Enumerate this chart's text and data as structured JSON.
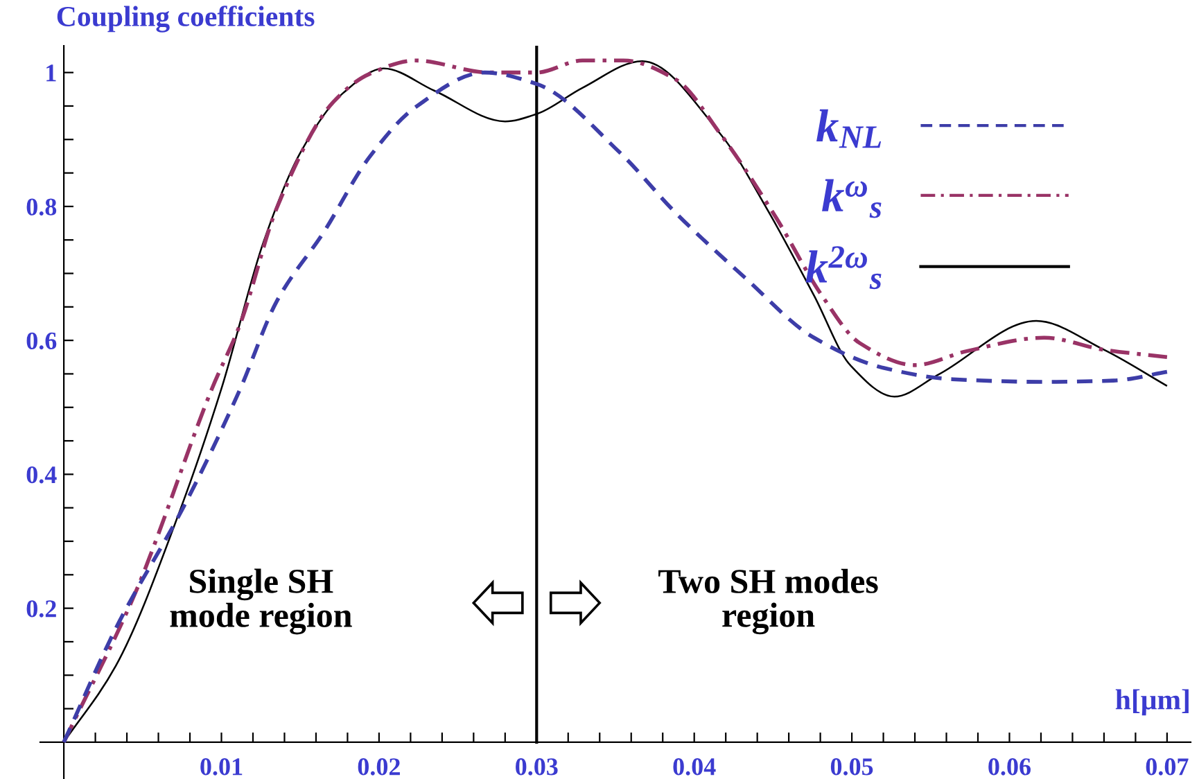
{
  "chart_data": {
    "type": "line",
    "ylabel": "Coupling coefficients",
    "xlabel": "h[μm]",
    "xlim": [
      -0.0015,
      0.0715
    ],
    "ylim": [
      -0.055,
      1.04
    ],
    "xticks": [
      {
        "value": 0.002,
        "label": null
      },
      {
        "value": 0.004,
        "label": null
      },
      {
        "value": 0.006,
        "label": null
      },
      {
        "value": 0.008,
        "label": null
      },
      0.01,
      {
        "value": 0.012,
        "label": null
      },
      {
        "value": 0.014,
        "label": null
      },
      {
        "value": 0.016,
        "label": null
      },
      {
        "value": 0.018,
        "label": null
      },
      0.02,
      {
        "value": 0.022,
        "label": null
      },
      {
        "value": 0.024,
        "label": null
      },
      {
        "value": 0.026,
        "label": null
      },
      {
        "value": 0.028,
        "label": null
      },
      0.03,
      {
        "value": 0.032,
        "label": null
      },
      {
        "value": 0.034,
        "label": null
      },
      {
        "value": 0.036,
        "label": null
      },
      {
        "value": 0.038,
        "label": null
      },
      0.04,
      {
        "value": 0.042,
        "label": null
      },
      {
        "value": 0.044,
        "label": null
      },
      {
        "value": 0.046,
        "label": null
      },
      {
        "value": 0.048,
        "label": null
      },
      0.05,
      {
        "value": 0.052,
        "label": null
      },
      {
        "value": 0.054,
        "label": null
      },
      {
        "value": 0.056,
        "label": null
      },
      {
        "value": 0.058,
        "label": null
      },
      0.06,
      {
        "value": 0.062,
        "label": null
      },
      {
        "value": 0.064,
        "label": null
      },
      {
        "value": 0.066,
        "label": null
      },
      {
        "value": 0.068,
        "label": null
      },
      0.07
    ],
    "yticks": [
      {
        "value": 0.05,
        "label": null
      },
      {
        "value": 0.1,
        "label": null
      },
      {
        "value": 0.15,
        "label": null
      },
      0.2,
      {
        "value": 0.25,
        "label": null
      },
      {
        "value": 0.3,
        "label": null
      },
      {
        "value": 0.35,
        "label": null
      },
      0.4,
      {
        "value": 0.45,
        "label": null
      },
      {
        "value": 0.5,
        "label": null
      },
      {
        "value": 0.55,
        "label": null
      },
      0.6,
      {
        "value": 0.65,
        "label": null
      },
      {
        "value": 0.7,
        "label": null
      },
      {
        "value": 0.75,
        "label": null
      },
      0.8,
      {
        "value": 0.85,
        "label": null
      },
      {
        "value": 0.9,
        "label": null
      },
      {
        "value": 0.95,
        "label": null
      },
      1
    ],
    "grid": false,
    "legend": "top right",
    "marker": "none",
    "series": [
      {
        "name": "k$_{NL}$",
        "color": "#3d3da8",
        "line_style": "dashed",
        "x": [
          0,
          0.0033,
          0.0077,
          0.0112,
          0.0135,
          0.0165,
          0.0194,
          0.0223,
          0.0267,
          0.03,
          0.0353,
          0.0388,
          0.0432,
          0.0476,
          0.052,
          0.0564,
          0.0622,
          0.0666,
          0.07
        ],
        "values": [
          0,
          0.17,
          0.356,
          0.528,
          0.658,
          0.762,
          0.874,
          0.948,
          1.0,
          0.983,
          0.88,
          0.791,
          0.694,
          0.604,
          0.559,
          0.542,
          0.538,
          0.54,
          0.553
        ]
      },
      {
        "name": "k$^{ω}$$_{s}$",
        "color": "#993366",
        "line_style": "dashdot",
        "x": [
          0,
          0.0047,
          0.0056,
          0.0094,
          0.0112,
          0.0135,
          0.0171,
          0.0194,
          0.0223,
          0.027,
          0.03,
          0.0329,
          0.0355,
          0.0388,
          0.0417,
          0.0452,
          0.0481,
          0.0505,
          0.054,
          0.0573,
          0.0622,
          0.066,
          0.07
        ],
        "values": [
          0,
          0.232,
          0.286,
          0.528,
          0.625,
          0.797,
          0.956,
          0.998,
          1.018,
          1.0,
          1.0,
          1.018,
          1.018,
          0.99,
          0.907,
          0.783,
          0.667,
          0.596,
          0.563,
          0.584,
          0.604,
          0.586,
          0.575
        ]
      },
      {
        "name": "k$^{2ω}$$_{s}$",
        "color": "#000000",
        "line_style": "solid",
        "x": [
          0,
          0.0033,
          0.0074,
          0.01,
          0.0127,
          0.015,
          0.0177,
          0.0203,
          0.0235,
          0.028,
          0.03,
          0.0329,
          0.0367,
          0.0417,
          0.0446,
          0.0476,
          0.0499,
          0.0527,
          0.0555,
          0.0617,
          0.066,
          0.07
        ],
        "values": [
          0,
          0.114,
          0.348,
          0.528,
          0.749,
          0.88,
          0.969,
          1.006,
          0.973,
          0.927,
          0.938,
          0.977,
          1.017,
          0.907,
          0.797,
          0.667,
          0.563,
          0.516,
          0.549,
          0.629,
          0.586,
          0.532
        ]
      }
    ],
    "ref_lines": [
      {
        "axis": "x",
        "value": 0.03,
        "label": null,
        "color": "#000000"
      }
    ],
    "annotations": [
      "Single SH\nmode region",
      "Two SH modes\nregion"
    ]
  }
}
